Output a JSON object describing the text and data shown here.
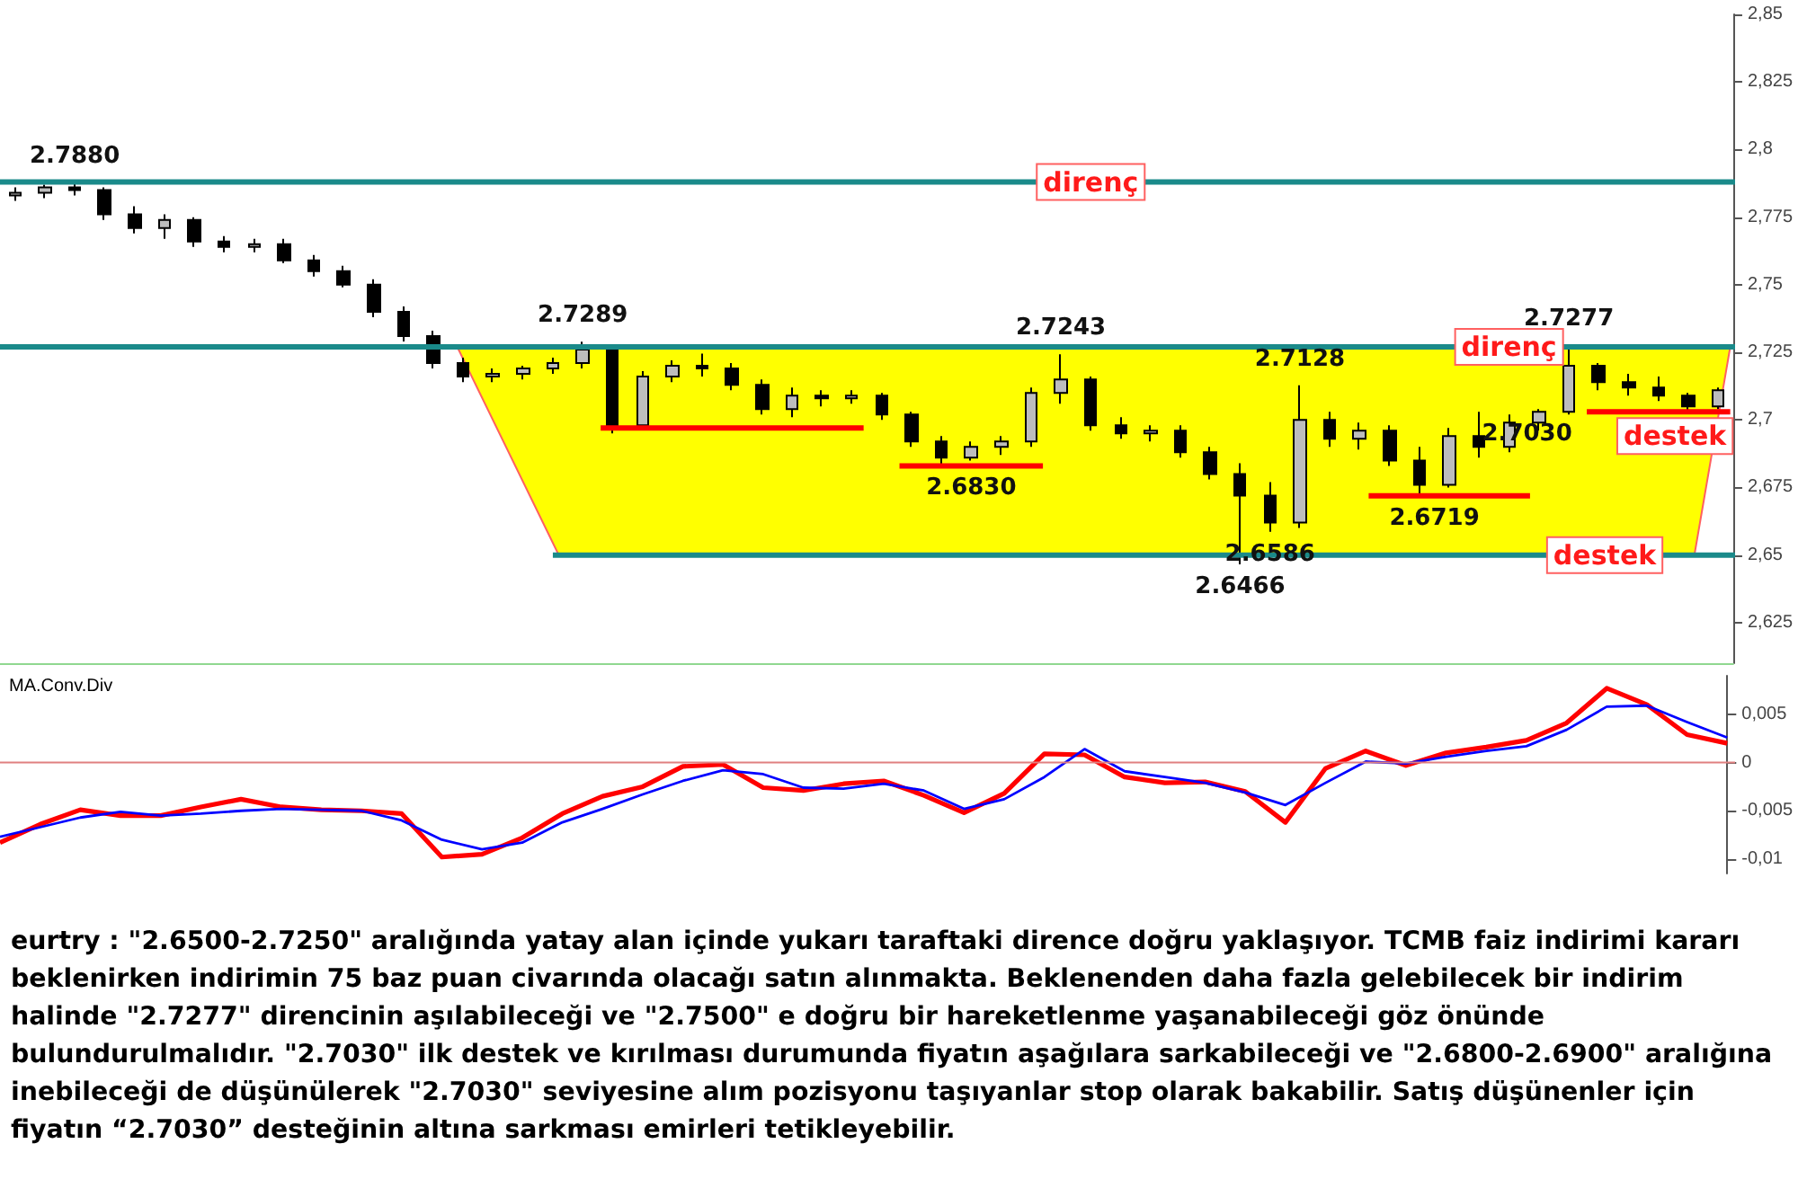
{
  "chart_data": [
    {
      "type": "candlestick",
      "categories": [
        null,
        null,
        null,
        null,
        null,
        null,
        null,
        null,
        null,
        null,
        null,
        null,
        null,
        null,
        null,
        null,
        null,
        null,
        null,
        null,
        null,
        null,
        null,
        null,
        null,
        null,
        null,
        null,
        null,
        null,
        null,
        null,
        null,
        null,
        null,
        null,
        null,
        null,
        null,
        null,
        null,
        null,
        null,
        null,
        null,
        null,
        null,
        null,
        null,
        null,
        null,
        null,
        null,
        null,
        null,
        null,
        null,
        null
      ],
      "ohlc": [
        [
          2.783,
          2.786,
          2.781,
          2.784
        ],
        [
          2.784,
          2.787,
          2.782,
          2.786
        ],
        [
          2.786,
          2.788,
          2.783,
          2.785
        ],
        [
          2.785,
          2.786,
          2.774,
          2.776
        ],
        [
          2.776,
          2.779,
          2.769,
          2.771
        ],
        [
          2.771,
          2.776,
          2.767,
          2.774
        ],
        [
          2.774,
          2.775,
          2.764,
          2.766
        ],
        [
          2.766,
          2.768,
          2.762,
          2.764
        ],
        [
          2.764,
          2.767,
          2.762,
          2.765
        ],
        [
          2.765,
          2.767,
          2.758,
          2.759
        ],
        [
          2.759,
          2.761,
          2.753,
          2.755
        ],
        [
          2.755,
          2.757,
          2.749,
          2.75
        ],
        [
          2.75,
          2.752,
          2.738,
          2.74
        ],
        [
          2.74,
          2.742,
          2.729,
          2.731
        ],
        [
          2.731,
          2.733,
          2.719,
          2.721
        ],
        [
          2.721,
          2.723,
          2.714,
          2.716
        ],
        [
          2.716,
          2.719,
          2.714,
          2.717
        ],
        [
          2.717,
          2.72,
          2.715,
          2.719
        ],
        [
          2.719,
          2.723,
          2.717,
          2.721
        ],
        [
          2.721,
          2.7289,
          2.719,
          2.726
        ],
        [
          2.726,
          2.727,
          2.695,
          2.698
        ],
        [
          2.698,
          2.718,
          2.697,
          2.716
        ],
        [
          2.716,
          2.722,
          2.714,
          2.72
        ],
        [
          2.72,
          2.7245,
          2.716,
          2.719
        ],
        [
          2.719,
          2.721,
          2.711,
          2.713
        ],
        [
          2.713,
          2.715,
          2.702,
          2.704
        ],
        [
          2.704,
          2.712,
          2.701,
          2.709
        ],
        [
          2.709,
          2.711,
          2.705,
          2.708
        ],
        [
          2.708,
          2.711,
          2.706,
          2.709
        ],
        [
          2.709,
          2.71,
          2.7,
          2.702
        ],
        [
          2.702,
          2.703,
          2.69,
          2.692
        ],
        [
          2.692,
          2.694,
          2.683,
          2.686
        ],
        [
          2.686,
          2.692,
          2.685,
          2.69
        ],
        [
          2.69,
          2.694,
          2.687,
          2.692
        ],
        [
          2.692,
          2.712,
          2.69,
          2.71
        ],
        [
          2.71,
          2.7243,
          2.706,
          2.715
        ],
        [
          2.715,
          2.716,
          2.696,
          2.698
        ],
        [
          2.698,
          2.701,
          2.693,
          2.695
        ],
        [
          2.695,
          2.698,
          2.692,
          2.696
        ],
        [
          2.696,
          2.698,
          2.686,
          2.688
        ],
        [
          2.688,
          2.69,
          2.678,
          2.68
        ],
        [
          2.68,
          2.684,
          2.6466,
          2.672
        ],
        [
          2.672,
          2.677,
          2.6586,
          2.662
        ],
        [
          2.662,
          2.7128,
          2.66,
          2.7
        ],
        [
          2.7,
          2.703,
          2.69,
          2.693
        ],
        [
          2.693,
          2.699,
          2.689,
          2.696
        ],
        [
          2.696,
          2.698,
          2.683,
          2.685
        ],
        [
          2.685,
          2.69,
          2.6719,
          2.676
        ],
        [
          2.676,
          2.697,
          2.675,
          2.694
        ],
        [
          2.694,
          2.703,
          2.686,
          2.69
        ],
        [
          2.69,
          2.702,
          2.688,
          2.699
        ],
        [
          2.699,
          2.704,
          2.696,
          2.703
        ],
        [
          2.703,
          2.7277,
          2.702,
          2.72
        ],
        [
          2.72,
          2.721,
          2.711,
          2.714
        ],
        [
          2.714,
          2.717,
          2.709,
          2.712
        ],
        [
          2.712,
          2.716,
          2.707,
          2.709
        ],
        [
          2.709,
          2.71,
          2.703,
          2.705
        ],
        [
          2.705,
          2.712,
          2.704,
          2.711
        ]
      ],
      "colors": [
        "#bdbdbd",
        "#bdbdbd",
        "#000000",
        "#000000",
        "#000000",
        "#bdbdbd",
        "#000000",
        "#000000",
        "#bdbdbd",
        "#000000",
        "#000000",
        "#000000",
        "#000000",
        "#000000",
        "#000000",
        "#000000",
        "#bdbdbd",
        "#bdbdbd",
        "#bdbdbd",
        "#bdbdbd",
        "#000000",
        "#bdbdbd",
        "#bdbdbd",
        "#000000",
        "#000000",
        "#000000",
        "#bdbdbd",
        "#000000",
        "#bdbdbd",
        "#000000",
        "#000000",
        "#000000",
        "#bdbdbd",
        "#bdbdbd",
        "#bdbdbd",
        "#bdbdbd",
        "#000000",
        "#000000",
        "#bdbdbd",
        "#000000",
        "#000000",
        "#000000",
        "#000000",
        "#bdbdbd",
        "#000000",
        "#bdbdbd",
        "#000000",
        "#000000",
        "#bdbdbd",
        "#000000",
        "#bdbdbd",
        "#bdbdbd",
        "#bdbdbd",
        "#000000",
        "#000000",
        "#000000",
        "#000000",
        "#bdbdbd"
      ],
      "ref_lines": [
        {
          "axis": "y",
          "value": 2.788,
          "label": "direnç",
          "color": "#1a8a8a"
        },
        {
          "axis": "y",
          "value": 2.727,
          "label": "direnç",
          "color": "#1a8a8a"
        },
        {
          "axis": "y",
          "value": 2.65,
          "label": "destek",
          "color": "#1a8a8a"
        },
        {
          "axis": "y",
          "value": 2.697,
          "color": "#ff0000"
        },
        {
          "axis": "y",
          "value": 2.683,
          "color": "#ff0000"
        },
        {
          "axis": "y",
          "value": 2.6719,
          "color": "#ff0000"
        },
        {
          "axis": "y",
          "value": 2.703,
          "label": "destek",
          "color": "#ff0000"
        }
      ],
      "bands": [
        {
          "axis": "y",
          "from": 2.65,
          "to": 2.727,
          "color": "#ffff00"
        }
      ],
      "annotations": [
        {
          "text": "2.7880",
          "y": 2.788
        },
        {
          "text": "2.7289",
          "y": 2.7289
        },
        {
          "text": "2.6830",
          "y": 2.683
        },
        {
          "text": "2.7243",
          "y": 2.7243
        },
        {
          "text": "2.6466",
          "y": 2.6466
        },
        {
          "text": "2.6586",
          "y": 2.6586
        },
        {
          "text": "2.7128",
          "y": 2.7128
        },
        {
          "text": "2.6719",
          "y": 2.6719
        },
        {
          "text": "2.7277",
          "y": 2.7277
        },
        {
          "text": "2.7030",
          "y": 2.703
        }
      ],
      "ylim": [
        2.61,
        2.85
      ],
      "yticks": [
        {
          "value": 2.625,
          "label": "2,625"
        },
        {
          "value": 2.65,
          "label": "2,65"
        },
        {
          "value": 2.675,
          "label": "2,675"
        },
        {
          "value": 2.7,
          "label": "2,7"
        },
        {
          "value": 2.725,
          "label": "2,725"
        },
        {
          "value": 2.75,
          "label": "2,75"
        },
        {
          "value": 2.775,
          "label": "2,775"
        },
        {
          "value": 2.8,
          "label": "2,8"
        },
        {
          "value": 2.825,
          "label": "2,825"
        },
        {
          "value": 2.85,
          "label": "2,85"
        }
      ],
      "tick_labels": "y",
      "grid": false
    },
    {
      "type": "line",
      "title": "MA.Conv.Div",
      "categories": [
        null,
        null,
        null,
        null,
        null,
        null,
        null,
        null,
        null,
        null,
        null,
        null,
        null,
        null,
        null,
        null,
        null,
        null,
        null,
        null,
        null,
        null,
        null,
        null,
        null,
        null,
        null,
        null,
        null,
        null,
        null,
        null,
        null,
        null,
        null,
        null,
        null,
        null,
        null,
        null,
        null,
        null,
        null,
        null
      ],
      "series": [
        {
          "color": "#ff0000",
          "values": [
            -0.0083,
            -0.0064,
            -0.0049,
            -0.0055,
            -0.0055,
            -0.0046,
            -0.0038,
            -0.0046,
            -0.0049,
            -0.005,
            -0.0053,
            -0.0098,
            -0.0095,
            -0.0078,
            -0.0053,
            -0.0035,
            -0.0025,
            -0.0004,
            -0.0002,
            -0.0026,
            -0.0029,
            -0.0022,
            -0.0019,
            -0.0034,
            -0.0052,
            -0.0032,
            0.0009,
            0.0008,
            -0.0015,
            -0.0021,
            -0.002,
            -0.003,
            -0.0062,
            -0.0006,
            0.0012,
            -0.0003,
            0.001,
            0.0016,
            0.0023,
            0.0041,
            0.0077,
            0.006,
            0.0029,
            0.002
          ]
        },
        {
          "color": "#0000ff",
          "values": [
            -0.0077,
            -0.0067,
            -0.0057,
            -0.0051,
            -0.0055,
            -0.0053,
            -0.005,
            -0.0048,
            -0.0049,
            -0.005,
            -0.006,
            -0.008,
            -0.009,
            -0.0083,
            -0.0062,
            -0.0048,
            -0.0033,
            -0.0019,
            -0.0008,
            -0.0012,
            -0.0026,
            -0.0027,
            -0.0022,
            -0.0029,
            -0.0048,
            -0.0038,
            -0.0015,
            0.0014,
            -0.0009,
            -0.0015,
            -0.0021,
            -0.0031,
            -0.0044,
            -0.0021,
            0.0001,
            -0.0001,
            0.0006,
            0.0012,
            0.0017,
            0.0034,
            0.0058,
            0.0059,
            0.0042,
            0.0026
          ]
        }
      ],
      "ref_lines": [
        {
          "axis": "y",
          "value": 0,
          "color": "#e08080"
        }
      ],
      "ylim": [
        -0.0115,
        0.009
      ],
      "yticks": [
        {
          "value": -0.01,
          "label": "-0,01"
        },
        {
          "value": -0.005,
          "label": "-0,005"
        },
        0,
        {
          "value": 0.005,
          "label": "0,005"
        }
      ],
      "tick_labels": "y",
      "grid": false,
      "annotations": [
        "eurtry : \"2.6500-2.7250\" aralığında yatay alan içinde yukarı taraftaki dirence doğru yaklaşıyor. TCMB faiz indirimi kararı beklenirken indirimin 75 baz puan civarında olacağı satın alınmakta. Beklenenden daha fazla gelebilecek bir indirim halinde \"2.7277\" direncinin aşılabileceği ve \"2.7500\" e doğru bir hareketlenme yaşanabileceği göz önünde bulundurulmalıdır. \"2.7030\" ilk destek ve kırılması durumunda fiyatın aşağılara sarkabileceği ve \"2.6800-2.6900\" aralığına inebileceği de düşünülerek \"2.7030\" seviyesine alım pozisyonu taşıyanlar stop olarak bakabilir. Satış düşünenler için fiyatın “2.7030” desteğinin altına sarkması emirleri tetikleyebilir."
      ]
    }
  ]
}
